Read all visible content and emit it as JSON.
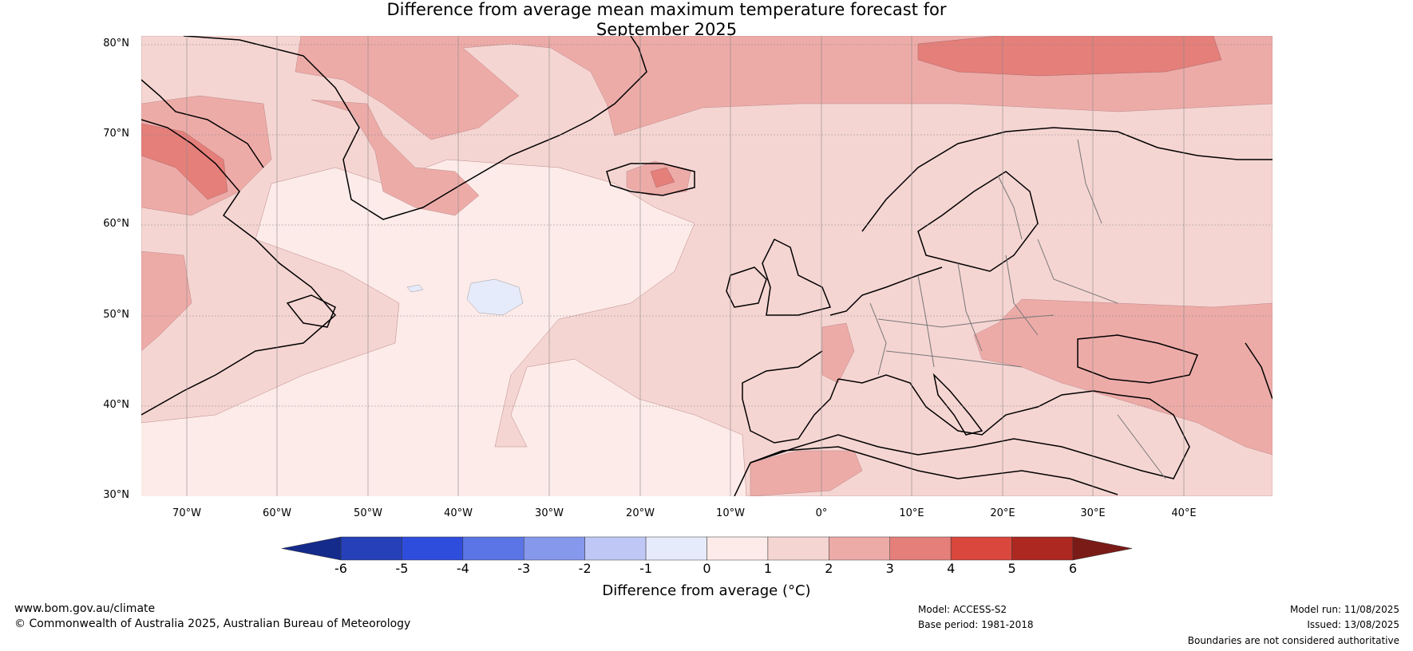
{
  "title": {
    "line1": "Difference from average mean maximum temperature forecast for",
    "line2": "September 2025"
  },
  "map": {
    "lat_labels": [
      "80°N",
      "70°N",
      "60°N",
      "50°N",
      "40°N",
      "30°N"
    ],
    "lon_labels": [
      "70°W",
      "60°W",
      "50°W",
      "40°W",
      "30°W",
      "20°W",
      "10°W",
      "0°",
      "10°E",
      "20°E",
      "30°E",
      "40°E"
    ],
    "colors": {
      "ocean_base": "#fcebe9",
      "band_1_2": "#f5d5d2",
      "band_2_3": "#edaba8",
      "band_3_4": "#e57f7a",
      "band_neg_0_1": "#e6ebfb"
    }
  },
  "colorbar": {
    "ticks": [
      "-6",
      "-5",
      "-4",
      "-3",
      "-2",
      "-1",
      "0",
      "1",
      "2",
      "3",
      "4",
      "5",
      "6"
    ],
    "colors": [
      "#142b8c",
      "#2540b8",
      "#2f4ddc",
      "#5b74e6",
      "#8698ec",
      "#bfc8f4",
      "#e6ebfb",
      "#fcebe9",
      "#f5d5d2",
      "#edaba8",
      "#e57f7a",
      "#d9473d",
      "#ad2820",
      "#7a1b17"
    ],
    "label": "Difference from average (°C)"
  },
  "footer": {
    "website": "www.bom.gov.au/climate",
    "copyright": "© Commonwealth of Australia 2025, Australian Bureau of Meteorology",
    "model": "Model: ACCESS-S2",
    "base_period": "Base period: 1981-2018",
    "model_run": "Model run: 11/08/2025",
    "issued": "Issued: 13/08/2025",
    "disclaimer": "Boundaries are not considered authoritative"
  }
}
